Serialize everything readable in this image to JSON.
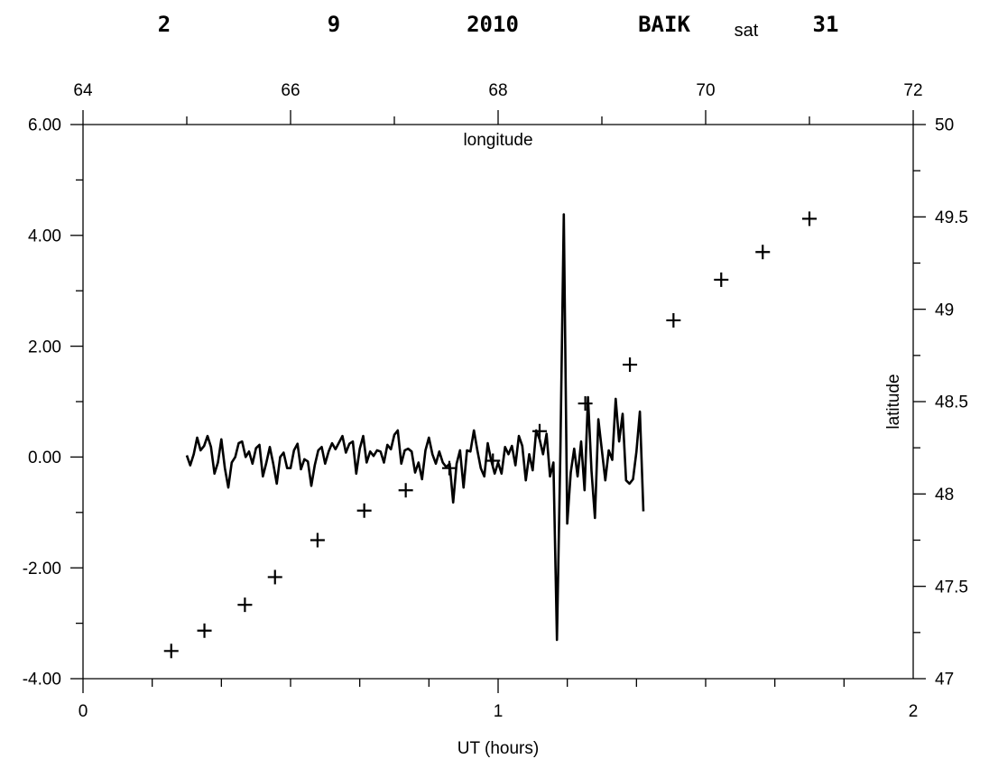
{
  "header": {
    "day": "2",
    "month": "9",
    "year": "2010",
    "station": "BAIK",
    "sat_label": "sat",
    "sat_number": "31"
  },
  "chart_data": {
    "type": "line+scatter",
    "title": "",
    "xlabel": "UT (hours)",
    "xlim": [
      0,
      2
    ],
    "x_ticks": [
      "0",
      "1",
      "2"
    ],
    "x_minor_step": 0.166667,
    "ylabel_left": "",
    "ylim_left": [
      -4,
      6
    ],
    "y_left_ticks": [
      "-4.00",
      "-2.00",
      "0.00",
      "2.00",
      "4.00",
      "6.00"
    ],
    "y_left_minor_step": 1,
    "top_axis": {
      "label": "longitude",
      "lim": [
        64,
        72
      ],
      "ticks": [
        "64",
        "66",
        "68",
        "70",
        "72"
      ],
      "minor_step": 1
    },
    "right_axis": {
      "label": "latitude",
      "lim": [
        47,
        50
      ],
      "ticks": [
        "47",
        "47.5",
        "48",
        "48.5",
        "49",
        "49.5",
        "50"
      ],
      "minor_step": 0.25
    },
    "grid": false,
    "legend": "none",
    "series": [
      {
        "kind": "line",
        "axis": "left",
        "x_start": 0.25,
        "x_step": 0.008333,
        "values": [
          0.03,
          -0.15,
          0.05,
          0.35,
          0.12,
          0.2,
          0.38,
          0.18,
          -0.3,
          -0.1,
          0.32,
          -0.2,
          -0.55,
          -0.1,
          0.0,
          0.25,
          0.28,
          0.0,
          0.1,
          -0.12,
          0.16,
          0.22,
          -0.35,
          -0.1,
          0.18,
          -0.12,
          -0.48,
          0.0,
          0.08,
          -0.2,
          -0.2,
          0.12,
          0.24,
          -0.22,
          -0.04,
          -0.08,
          -0.52,
          -0.15,
          0.12,
          0.18,
          -0.12,
          0.1,
          0.25,
          0.14,
          0.26,
          0.38,
          0.08,
          0.24,
          0.28,
          -0.3,
          0.15,
          0.38,
          -0.1,
          0.1,
          0.02,
          0.12,
          0.1,
          -0.1,
          0.22,
          0.14,
          0.4,
          0.48,
          -0.12,
          0.12,
          0.15,
          0.1,
          -0.28,
          -0.1,
          -0.4,
          0.12,
          0.35,
          0.05,
          -0.12,
          0.1,
          -0.1,
          -0.18,
          -0.12,
          -0.82,
          -0.12,
          0.12,
          -0.55,
          0.12,
          0.1,
          0.48,
          0.12,
          -0.2,
          -0.35,
          0.25,
          -0.06,
          -0.3,
          -0.1,
          -0.3,
          0.18,
          0.05,
          0.2,
          -0.15,
          0.38,
          0.2,
          -0.42,
          0.05,
          -0.24,
          0.48,
          0.32,
          0.05,
          0.42,
          -0.35,
          -0.1,
          -3.3,
          0.1,
          4.38,
          -1.2,
          -0.28,
          0.15,
          -0.35,
          0.28,
          -0.6,
          1.08,
          -0.25,
          -1.1,
          0.68,
          0.12,
          -0.42,
          0.12,
          -0.05,
          1.05,
          0.28,
          0.78,
          -0.42,
          -0.48,
          -0.4,
          0.1,
          0.82,
          -0.98
        ]
      },
      {
        "kind": "scatter",
        "marker": "+",
        "axis": "top-right",
        "x": [
          64.85,
          65.17,
          65.56,
          65.85,
          66.26,
          66.71,
          67.11,
          67.53,
          67.95,
          68.4,
          68.84,
          69.27,
          69.69,
          70.15,
          70.55,
          71.0
        ],
        "y": [
          47.15,
          47.26,
          47.4,
          47.55,
          47.75,
          47.91,
          48.02,
          48.14,
          48.18,
          48.34,
          48.49,
          48.7,
          48.94,
          49.16,
          49.31,
          49.49
        ]
      }
    ]
  }
}
